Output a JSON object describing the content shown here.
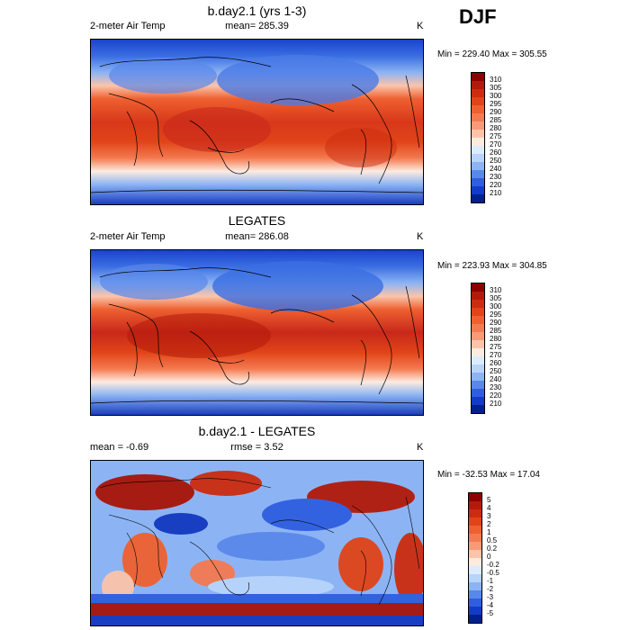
{
  "season": "DJF",
  "panels": [
    {
      "title": "b.day2.1 (yrs 1-3)",
      "left_label": "2-meter Air Temp",
      "center_label": "mean= 285.39",
      "right_label": "K",
      "minmax": "Min = 229.40 Max = 305.55"
    },
    {
      "title": "LEGATES",
      "left_label": "2-meter Air Temp",
      "center_label": "mean= 286.08",
      "right_label": "K",
      "minmax": "Min = 223.93 Max = 304.85"
    },
    {
      "title": "b.day2.1 - LEGATES",
      "left_label": "mean =  -0.69",
      "center_label": "rmse =  3.52",
      "right_label": "K",
      "minmax": "Min = -32.53 Max =  17.04"
    }
  ],
  "temp_colorbar": {
    "labels": [
      "310",
      "305",
      "300",
      "295",
      "290",
      "285",
      "280",
      "275",
      "270",
      "260",
      "250",
      "240",
      "230",
      "220",
      "210"
    ],
    "colors": [
      "#8b0000",
      "#b21a0a",
      "#cc2c10",
      "#e04418",
      "#ee6030",
      "#f47a50",
      "#f89a78",
      "#fbc4aa",
      "#fdebe0",
      "#dcecff",
      "#b8d4fb",
      "#8cb4f4",
      "#5a88ea",
      "#2f5ee0",
      "#123cc8",
      "#002090"
    ]
  },
  "diff_colorbar": {
    "labels": [
      "5",
      "4",
      "3",
      "2",
      "1",
      "0.5",
      "0.2",
      "0",
      "-0.2",
      "-0.5",
      "-1",
      "-2",
      "-3",
      "-4",
      "-5"
    ],
    "colors": [
      "#8b0000",
      "#b21a0a",
      "#cc2c10",
      "#e04418",
      "#ee6030",
      "#f47a50",
      "#f89a78",
      "#fbc4aa",
      "#fdebe0",
      "#dcecff",
      "#b8d4fb",
      "#8cb4f4",
      "#5a88ea",
      "#2f5ee0",
      "#123cc8",
      "#002090"
    ]
  }
}
